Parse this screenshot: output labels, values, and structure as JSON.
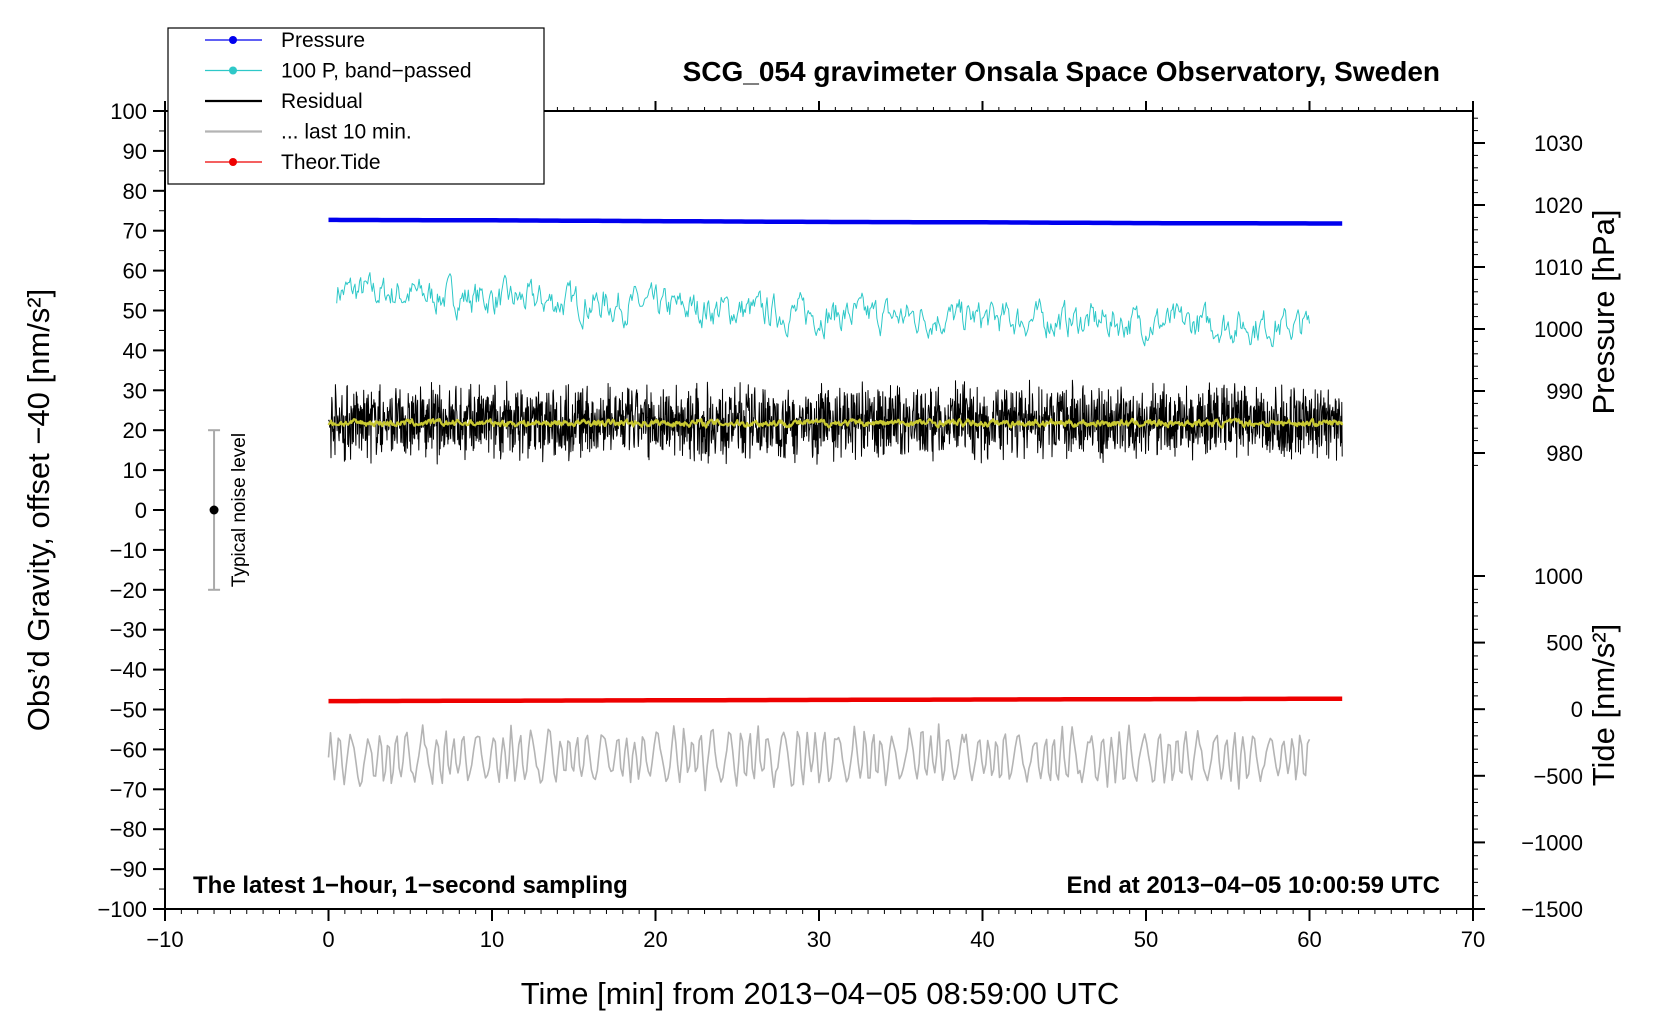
{
  "chart_data": {
    "type": "line",
    "title": "SCG_054 gravimeter Onsala Space Observatory, Sweden",
    "xlabel": "Time [min] from 2013−04−05 08:59:00 UTC",
    "ylabel_left": "Obs’d Gravity, offset −40 [nm/s²]",
    "ylabel_right_top": "Pressure [hPa]",
    "ylabel_right_bottom": "Tide [nm/s²]",
    "xlim": [
      -10,
      70
    ],
    "ylim_left": [
      -100,
      100
    ],
    "ylim_pressure": [
      965,
      1032
    ],
    "ylim_tide": [
      -1500,
      1000
    ],
    "xticks": [
      "−10",
      "0",
      "10",
      "20",
      "30",
      "40",
      "50",
      "60",
      "70"
    ],
    "yticks_left": [
      "100",
      "90",
      "80",
      "70",
      "60",
      "50",
      "40",
      "30",
      "20",
      "10",
      "0",
      "−10",
      "−20",
      "−30",
      "−40",
      "−50",
      "−60",
      "−70",
      "−80",
      "−90",
      "−100"
    ],
    "yticks_pressure": [
      "1030",
      "1020",
      "1010",
      "1000",
      "990",
      "980"
    ],
    "yticks_tide": [
      "1000",
      "500",
      "0",
      "−500",
      "−1000",
      "−1500"
    ],
    "annotation_left": "The latest 1−hour, 1−second sampling",
    "annotation_right": "End at 2013−04−05 10:00:59 UTC",
    "noise_label": "Typical noise level",
    "noise_bar": {
      "x": -7,
      "y_center": 0,
      "y_low": -20,
      "y_high": 20
    },
    "legend": {
      "placement": "top-left",
      "entries": [
        {
          "label": "Pressure",
          "color": "#0000ee",
          "marker": true
        },
        {
          "label": "100 P, band−passed",
          "color": "#2ec8c8",
          "marker": true
        },
        {
          "label": "Residual",
          "color": "#000000",
          "marker": false
        },
        {
          "label": "... last 10 min.",
          "color": "#b4b4b4",
          "marker": false
        },
        {
          "label": "Theor.Tide",
          "color": "#ee0000",
          "marker": true
        }
      ]
    },
    "series": [
      {
        "name": "Pressure",
        "color": "#0000ee",
        "axis": "left",
        "x": [
          0,
          10,
          20,
          30,
          40,
          50,
          62
        ],
        "y": [
          72.7,
          72.6,
          72.4,
          72.2,
          72.1,
          71.9,
          71.8
        ]
      },
      {
        "name": "100 P, band−passed",
        "color": "#2ec8c8",
        "axis": "left",
        "x": [
          0.5,
          10,
          20,
          30,
          40,
          50,
          60
        ],
        "y": [
          55,
          53,
          51,
          49,
          48,
          47,
          46
        ],
        "amplitude": 4
      },
      {
        "name": "Residual",
        "color": "#000000",
        "axis": "left",
        "x": [
          0,
          62
        ],
        "y": [
          22,
          22
        ],
        "amplitude": 9
      },
      {
        "color": "#c8c832",
        "axis": "left",
        "x": [
          0,
          62
        ],
        "y": [
          21.8,
          21.8
        ],
        "amplitude": 0.8
      },
      {
        "name": "... last 10 min.",
        "color": "#b4b4b4",
        "axis": "left",
        "x": [
          0,
          60
        ],
        "y": [
          -62,
          -62
        ],
        "amplitude": 7
      },
      {
        "name": "Theor.Tide",
        "color": "#ee0000",
        "axis": "left",
        "x": [
          0,
          20,
          40,
          62
        ],
        "y": [
          -47.9,
          -47.7,
          -47.5,
          -47.3
        ]
      }
    ]
  }
}
